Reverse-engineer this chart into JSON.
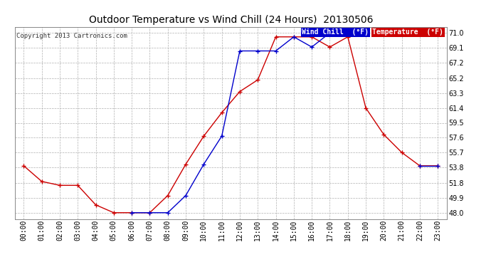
{
  "title": "Outdoor Temperature vs Wind Chill (24 Hours)  20130506",
  "copyright": "Copyright 2013 Cartronics.com",
  "background_color": "#ffffff",
  "plot_bg_color": "#ffffff",
  "grid_color": "#b0b0b0",
  "x_labels": [
    "00:00",
    "01:00",
    "02:00",
    "03:00",
    "04:00",
    "05:00",
    "06:00",
    "07:00",
    "08:00",
    "09:00",
    "10:00",
    "11:00",
    "12:00",
    "13:00",
    "14:00",
    "15:00",
    "16:00",
    "17:00",
    "18:00",
    "19:00",
    "20:00",
    "21:00",
    "22:00",
    "23:00"
  ],
  "y_ticks": [
    48.0,
    49.9,
    51.8,
    53.8,
    55.7,
    57.6,
    59.5,
    61.4,
    63.3,
    65.2,
    67.2,
    69.1,
    71.0
  ],
  "ylim": [
    47.2,
    71.8
  ],
  "temperature": [
    54.0,
    52.0,
    51.5,
    51.5,
    49.0,
    48.0,
    48.0,
    48.0,
    50.2,
    54.2,
    57.8,
    60.8,
    63.5,
    65.0,
    70.5,
    70.5,
    70.5,
    69.2,
    70.5,
    61.4,
    58.0,
    55.7,
    54.0,
    54.0
  ],
  "wind_chill": [
    null,
    null,
    null,
    null,
    null,
    null,
    48.0,
    48.0,
    48.0,
    50.2,
    54.2,
    57.8,
    68.7,
    68.7,
    68.7,
    70.5,
    69.2,
    71.0,
    null,
    null,
    null,
    null,
    54.0,
    54.0
  ],
  "temp_color": "#cc0000",
  "wind_color": "#0000cc",
  "legend_wind_bg": "#0000cc",
  "legend_temp_bg": "#cc0000",
  "legend_wind_text": "Wind Chill  (°F)",
  "legend_temp_text": "Temperature  (°F)",
  "title_fontsize": 10,
  "tick_fontsize": 7,
  "copyright_fontsize": 6.5,
  "legend_fontsize": 7
}
